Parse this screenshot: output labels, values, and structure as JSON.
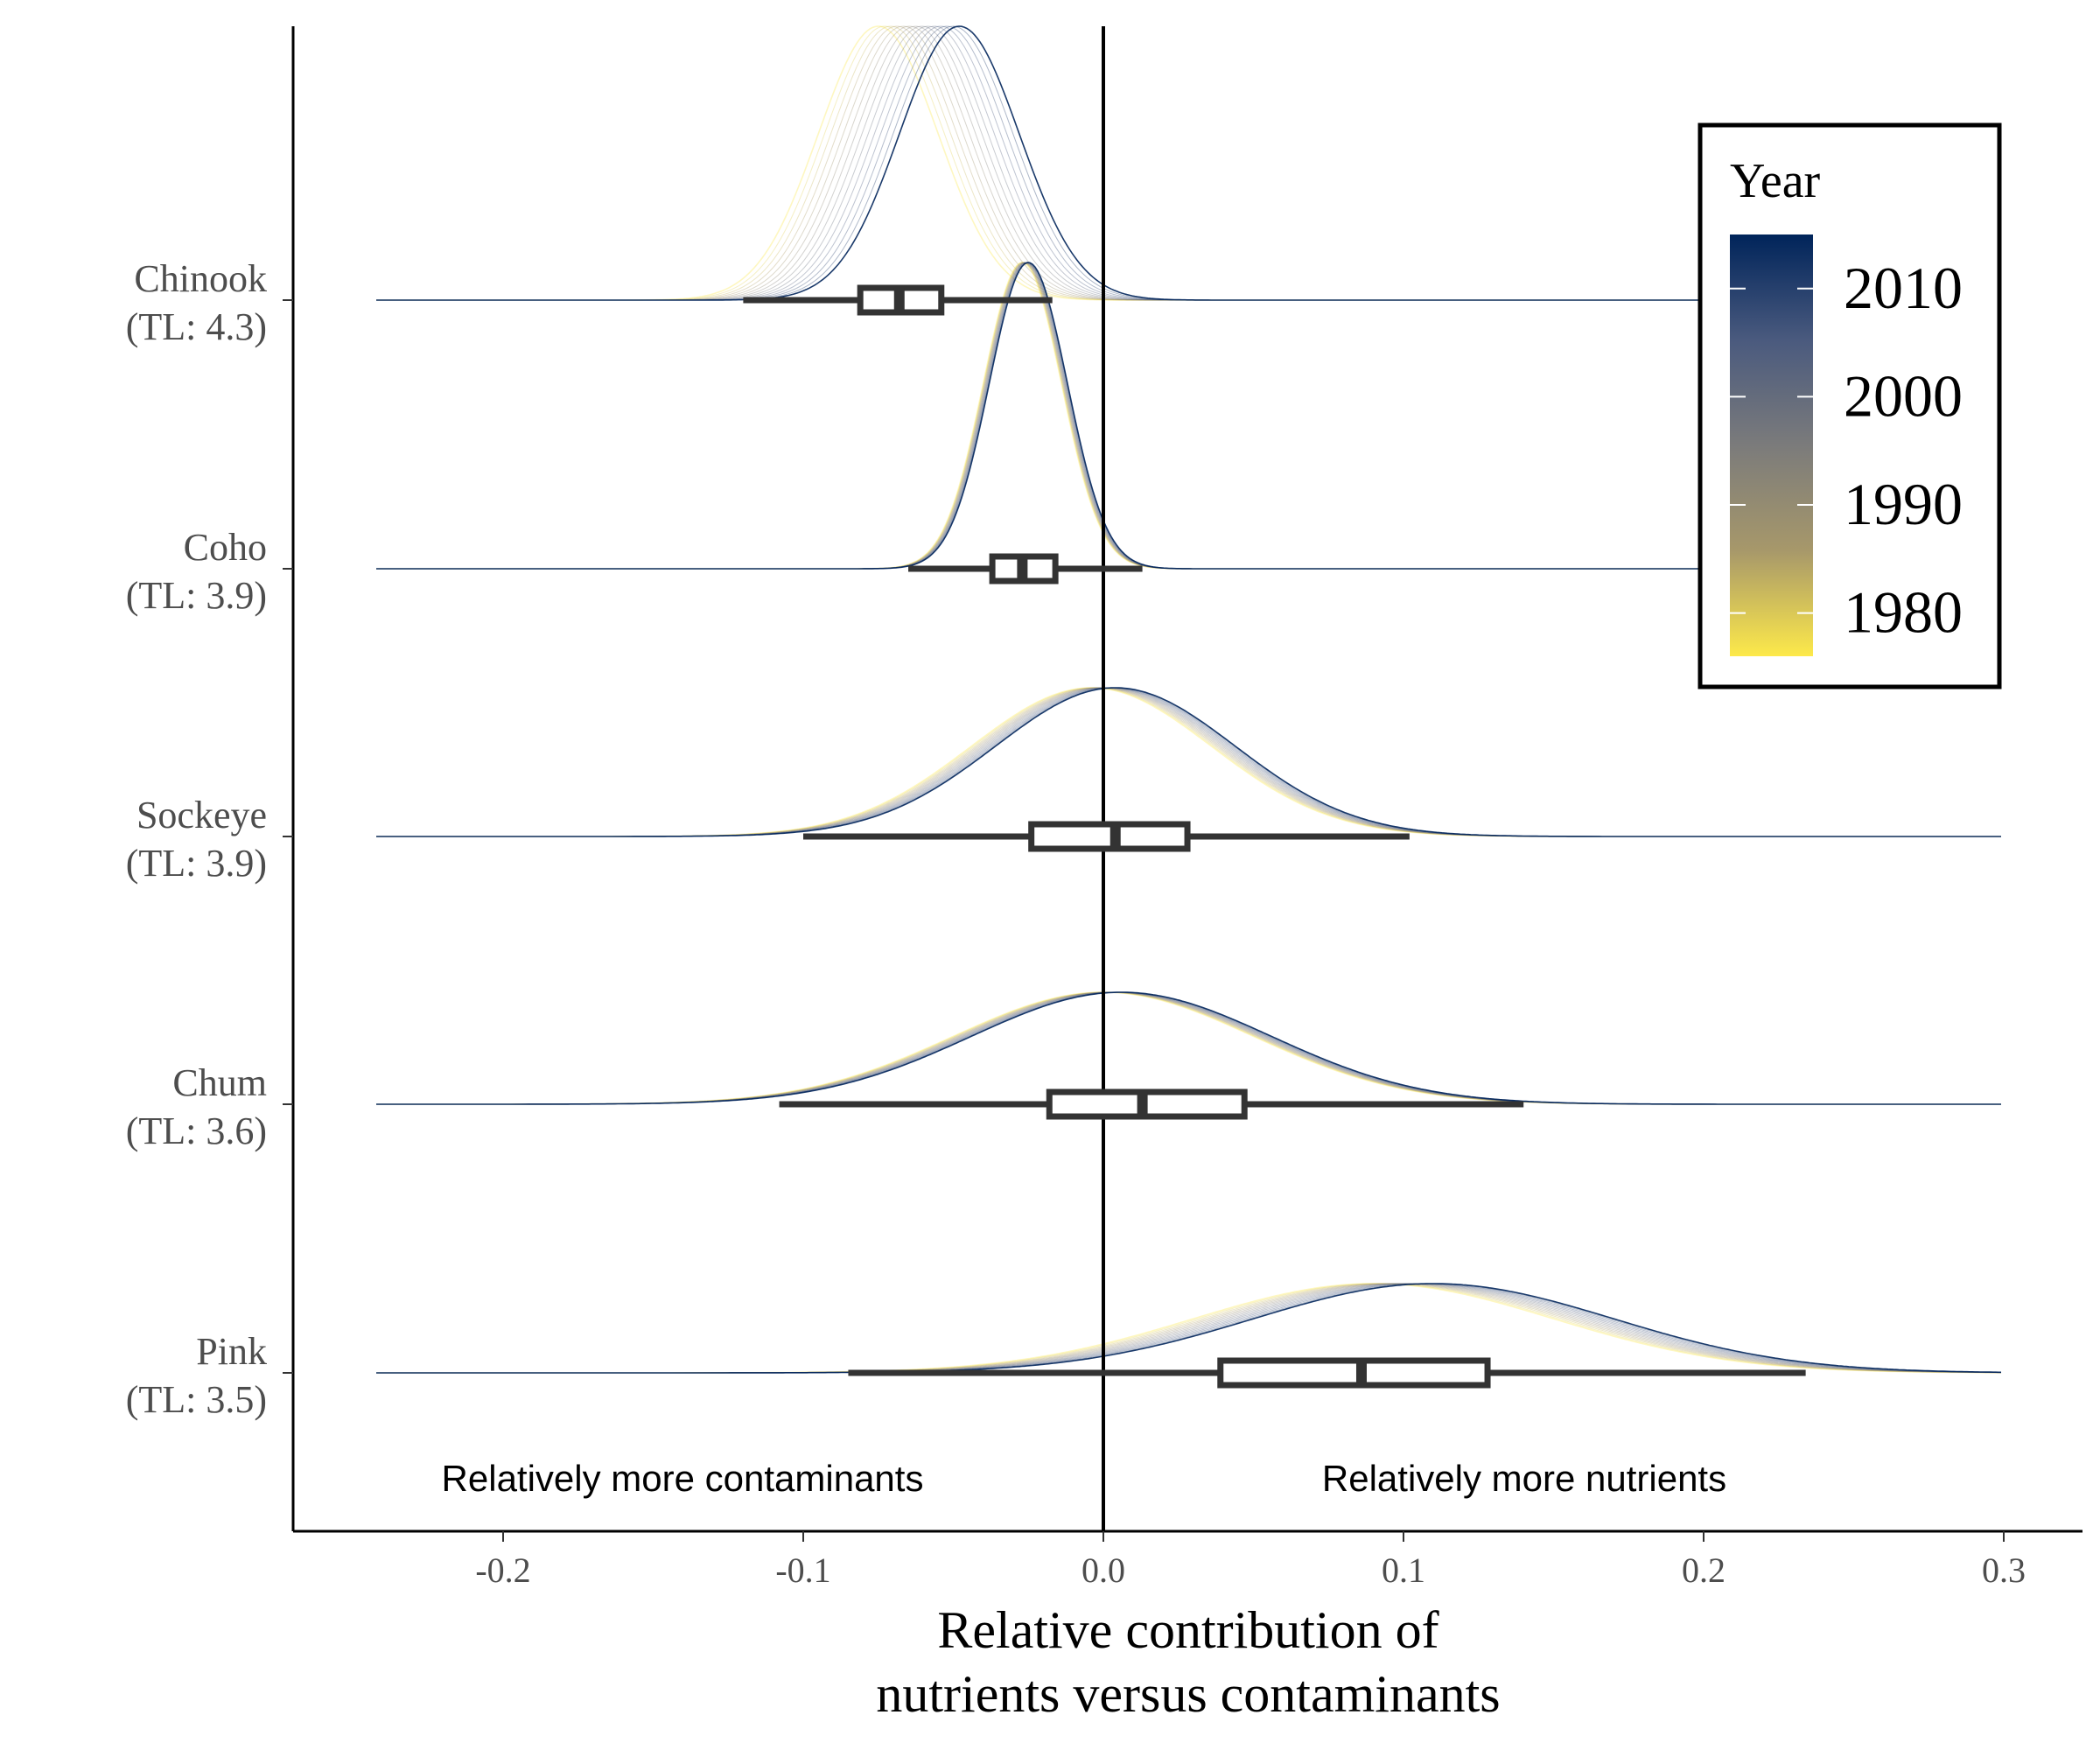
{
  "chart_data": {
    "type": "ridgeline",
    "xlabel_lines": [
      "Relative contribution of",
      "nutrients versus contaminants"
    ],
    "xlim": [
      -0.27,
      0.31
    ],
    "xticks": [
      -0.2,
      -0.1,
      0.0,
      0.1,
      0.2,
      0.3
    ],
    "xtick_labels": [
      "-0.2",
      "-0.1",
      "0.0",
      "0.1",
      "0.2",
      "0.3"
    ],
    "reference_line_x": 0.0,
    "annotations": {
      "left": "Relatively more contaminants",
      "right": "Relatively more nutrients"
    },
    "legend": {
      "title": "Year",
      "placement": "top-right",
      "type": "colorbar",
      "range": [
        1976,
        2015
      ],
      "ticks": [
        1980,
        1990,
        2000,
        2010
      ],
      "tick_labels": [
        "1980",
        "1990",
        "2000",
        "2010"
      ],
      "colors": [
        "#fde94a",
        "#a7986a",
        "#7b7b7b",
        "#4a5a7e",
        "#00245a"
      ]
    },
    "series": [
      {
        "species": "Chinook",
        "trophic_level": "(TL: 4.3)",
        "box": {
          "whisker_low": -0.12,
          "q1": -0.081,
          "median": -0.068,
          "q3": -0.054,
          "whisker_high": -0.017
        },
        "density_peak_range": [
          -0.075,
          -0.048
        ],
        "density_sd": 0.02
      },
      {
        "species": "Coho",
        "trophic_level": "(TL: 3.9)",
        "box": {
          "whisker_low": -0.065,
          "q1": -0.037,
          "median": -0.027,
          "q3": -0.016,
          "whisker_high": 0.013
        },
        "density_peak_range": [
          -0.027,
          -0.025
        ],
        "density_sd": 0.013
      },
      {
        "species": "Sockeye",
        "trophic_level": "(TL: 3.9)",
        "box": {
          "whisker_low": -0.1,
          "q1": -0.024,
          "median": 0.004,
          "q3": 0.028,
          "whisker_high": 0.102
        },
        "density_peak_range": [
          -0.004,
          0.004
        ],
        "density_sd": 0.04
      },
      {
        "species": "Chum",
        "trophic_level": "(TL: 3.6)",
        "box": {
          "whisker_low": -0.108,
          "q1": -0.018,
          "median": 0.013,
          "q3": 0.047,
          "whisker_high": 0.14
        },
        "density_peak_range": [
          0.0,
          0.006
        ],
        "density_sd": 0.05
      },
      {
        "species": "Pink",
        "trophic_level": "(TL: 3.5)",
        "box": {
          "whisker_low": -0.085,
          "q1": 0.039,
          "median": 0.086,
          "q3": 0.128,
          "whisker_high": 0.234
        },
        "density_peak_range": [
          0.09,
          0.11
        ],
        "density_sd": 0.06
      }
    ]
  }
}
